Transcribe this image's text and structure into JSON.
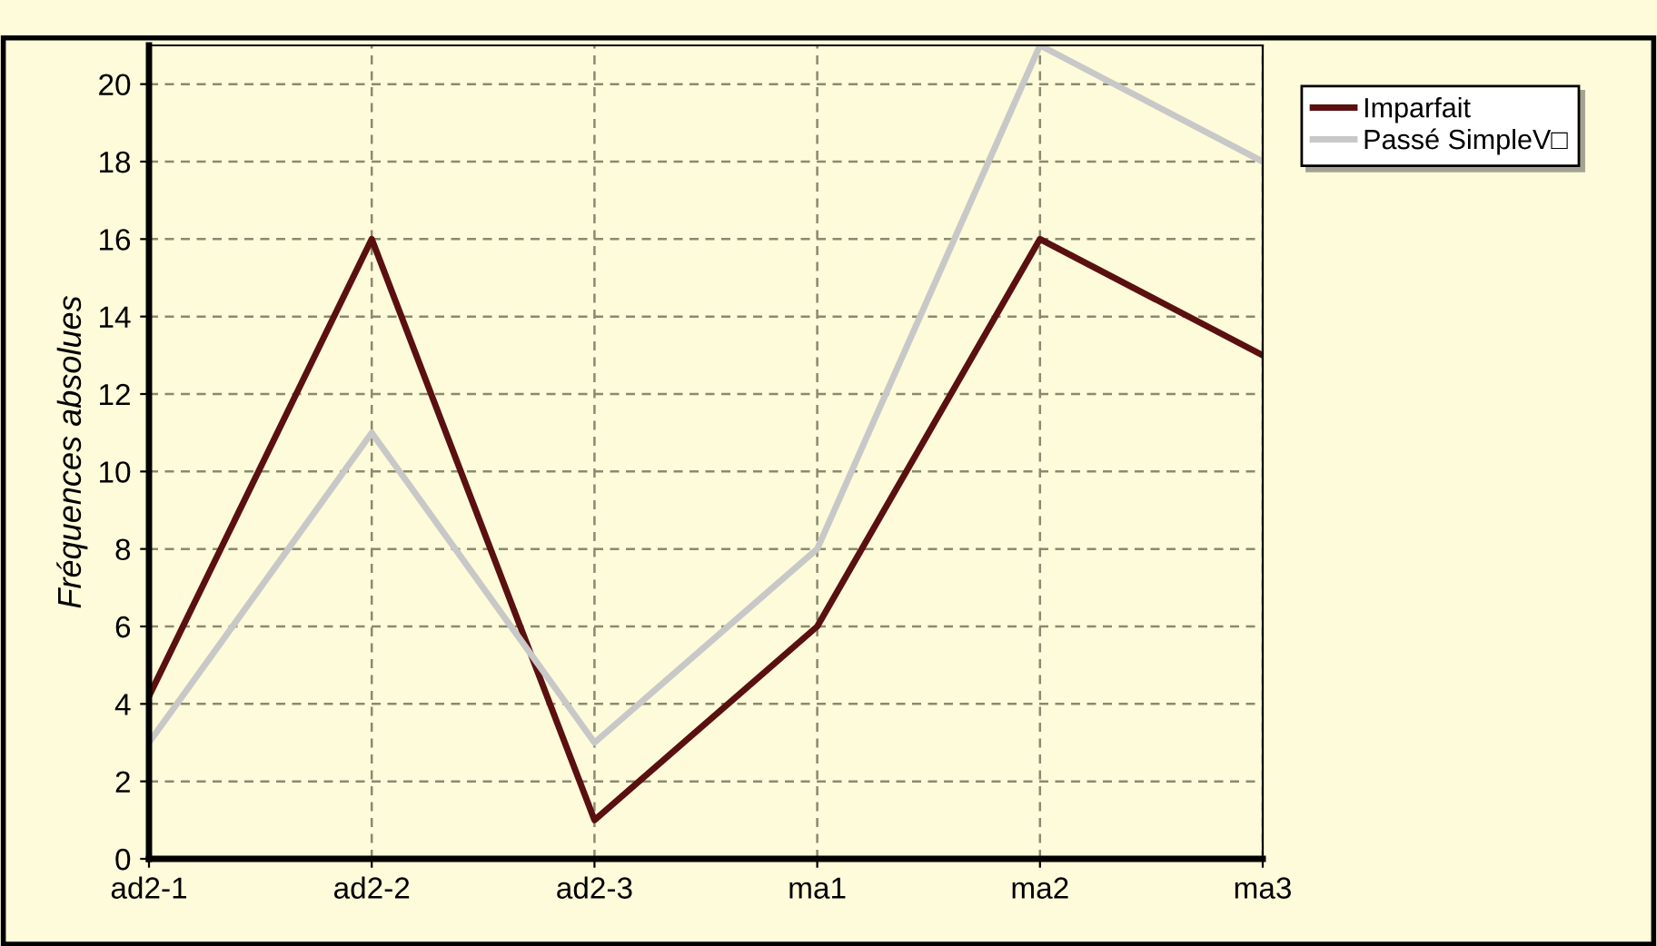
{
  "chart_data": {
    "type": "line",
    "ylabel": "Fréquences absolues",
    "categories": [
      "ad2-1",
      "ad2-2",
      "ad2-3",
      "ma1",
      "ma2",
      "ma3"
    ],
    "series": [
      {
        "name": "Imparfait",
        "color": "#5a1010",
        "values": [
          4.2,
          16,
          1,
          6,
          16,
          13
        ]
      },
      {
        "name": "Passé SimpleV□",
        "color": "#c8c8c8",
        "values": [
          3,
          11,
          3,
          8,
          21,
          18
        ]
      }
    ],
    "ylim": [
      0,
      21
    ],
    "yticks": [
      0,
      2,
      4,
      6,
      8,
      10,
      12,
      14,
      16,
      18,
      20
    ],
    "grid": true,
    "legend": "top right",
    "marker": "none",
    "line_style": "solid"
  }
}
